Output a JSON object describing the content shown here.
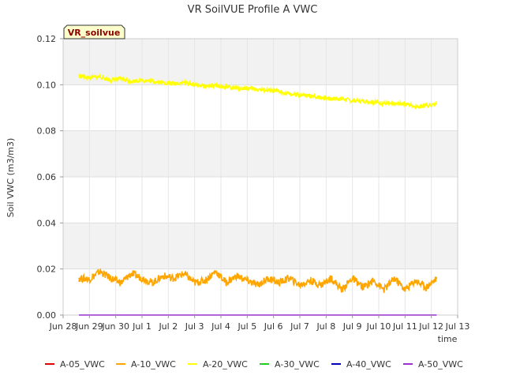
{
  "chart_data": {
    "type": "line",
    "title": "VR SoilVUE Profile A VWC",
    "xlabel": "time",
    "ylabel": "Soil VWC (m3/m3)",
    "station_label": "VR_soilvue",
    "x_domain": [
      0,
      15
    ],
    "ylim": [
      0,
      0.12
    ],
    "y_ticks": [
      0.0,
      0.02,
      0.04,
      0.06,
      0.08,
      0.1,
      0.12
    ],
    "y_tick_labels": [
      "0.00",
      "0.02",
      "0.04",
      "0.06",
      "0.08",
      "0.10",
      "0.12"
    ],
    "x_ticks": [
      {
        "pos": 0,
        "label": "Jun 28"
      },
      {
        "pos": 1,
        "label": "Jun 29"
      },
      {
        "pos": 2,
        "label": "Jun 30"
      },
      {
        "pos": 3,
        "label": "Jul 1"
      },
      {
        "pos": 4,
        "label": "Jul 2"
      },
      {
        "pos": 5,
        "label": "Jul 3"
      },
      {
        "pos": 6,
        "label": "Jul 4"
      },
      {
        "pos": 7,
        "label": "Jul 5"
      },
      {
        "pos": 8,
        "label": "Jul 6"
      },
      {
        "pos": 9,
        "label": "Jul 7"
      },
      {
        "pos": 10,
        "label": "Jul 8"
      },
      {
        "pos": 11,
        "label": "Jul 9"
      },
      {
        "pos": 12,
        "label": "Jul 10"
      },
      {
        "pos": 13,
        "label": "Jul 11"
      },
      {
        "pos": 14,
        "label": "Jul 12"
      },
      {
        "pos": 15,
        "label": "Jul 13"
      }
    ],
    "grid": true,
    "legend_position": "bottom",
    "series": [
      {
        "name": "A-05_VWC",
        "color": "#dd0000",
        "x": [],
        "y": []
      },
      {
        "name": "A-10_VWC",
        "color": "#ffa500",
        "x": [
          0.6,
          1.0,
          1.4,
          1.8,
          2.2,
          2.6,
          3.0,
          3.4,
          3.8,
          4.2,
          4.6,
          5.0,
          5.4,
          5.8,
          6.2,
          6.6,
          7.0,
          7.4,
          7.8,
          8.2,
          8.6,
          9.0,
          9.4,
          9.8,
          10.2,
          10.6,
          11.0,
          11.4,
          11.8,
          12.2,
          12.6,
          13.0,
          13.4,
          13.8,
          14.2
        ],
        "y": [
          0.016,
          0.0155,
          0.019,
          0.016,
          0.014,
          0.018,
          0.016,
          0.014,
          0.017,
          0.016,
          0.018,
          0.014,
          0.015,
          0.019,
          0.014,
          0.017,
          0.015,
          0.013,
          0.016,
          0.014,
          0.016,
          0.013,
          0.015,
          0.013,
          0.016,
          0.011,
          0.016,
          0.012,
          0.015,
          0.011,
          0.016,
          0.011,
          0.015,
          0.012,
          0.016
        ]
      },
      {
        "name": "A-20_VWC",
        "color": "#ffff00",
        "x": [
          0.6,
          1.0,
          1.4,
          1.8,
          2.2,
          2.6,
          3.0,
          3.4,
          3.8,
          4.2,
          4.6,
          5.0,
          5.4,
          5.8,
          6.2,
          6.6,
          7.0,
          7.4,
          7.8,
          8.2,
          8.6,
          9.0,
          9.4,
          9.8,
          10.2,
          10.6,
          11.0,
          11.4,
          11.8,
          12.2,
          12.6,
          13.0,
          13.4,
          13.8,
          14.2
        ],
        "y": [
          0.104,
          0.103,
          0.1035,
          0.102,
          0.1025,
          0.1015,
          0.102,
          0.1015,
          0.101,
          0.1005,
          0.101,
          0.1,
          0.0995,
          0.0995,
          0.099,
          0.0985,
          0.0985,
          0.098,
          0.0975,
          0.097,
          0.096,
          0.0955,
          0.095,
          0.0945,
          0.094,
          0.094,
          0.093,
          0.093,
          0.0925,
          0.092,
          0.0915,
          0.092,
          0.0905,
          0.091,
          0.0915
        ]
      },
      {
        "name": "A-30_VWC",
        "color": "#22cc22",
        "x": [],
        "y": []
      },
      {
        "name": "A-40_VWC",
        "color": "#0000bb",
        "x": [],
        "y": []
      },
      {
        "name": "A-50_VWC",
        "color": "#9932cc",
        "x": [
          0.6,
          14.2
        ],
        "y": [
          0.0,
          0.0
        ]
      }
    ]
  }
}
